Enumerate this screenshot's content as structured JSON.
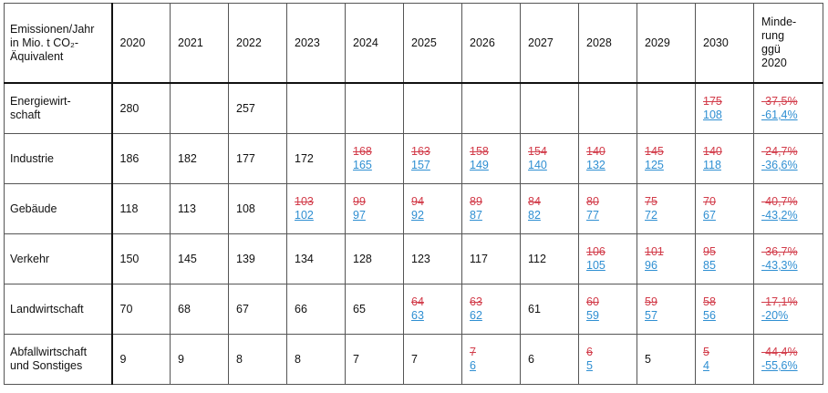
{
  "table": {
    "header": [
      "Emissionen/Jahr\nin Mio. t CO₂-\nÄquivalent",
      "2020",
      "2021",
      "2022",
      "2023",
      "2024",
      "2025",
      "2026",
      "2027",
      "2028",
      "2029",
      "2030",
      "Minde-\nrung\nggü\n2020"
    ],
    "rows": [
      {
        "label": "Energiewirt-\nschaft",
        "cells": [
          280,
          null,
          257,
          null,
          null,
          null,
          null,
          null,
          null,
          null,
          {
            "old": 175,
            "new": 108
          },
          {
            "old": "-37,5%",
            "new": "-61,4%"
          }
        ]
      },
      {
        "label": "Industrie",
        "cells": [
          186,
          182,
          177,
          172,
          {
            "old": 168,
            "new": 165
          },
          {
            "old": 163,
            "new": 157
          },
          {
            "old": 158,
            "new": 149
          },
          {
            "old": 154,
            "new": 140
          },
          {
            "old": 140,
            "new": 132
          },
          {
            "old": 145,
            "new": 125
          },
          {
            "old": 140,
            "new": 118
          },
          {
            "old": "-24,7%",
            "new": "-36,6%"
          }
        ]
      },
      {
        "label": "Gebäude",
        "cells": [
          118,
          113,
          108,
          {
            "old": 103,
            "new": 102
          },
          {
            "old": 99,
            "new": 97
          },
          {
            "old": 94,
            "new": 92
          },
          {
            "old": 89,
            "new": 87
          },
          {
            "old": 84,
            "new": 82
          },
          {
            "old": 80,
            "new": 77
          },
          {
            "old": 75,
            "new": 72
          },
          {
            "old": 70,
            "new": 67
          },
          {
            "old": "-40,7%",
            "new": "-43,2%"
          }
        ]
      },
      {
        "label": "Verkehr",
        "cells": [
          150,
          145,
          139,
          134,
          128,
          123,
          117,
          112,
          {
            "old": 106,
            "new": 105
          },
          {
            "old": 101,
            "new": 96
          },
          {
            "old": 95,
            "new": 85
          },
          {
            "old": "-36,7%",
            "new": "-43,3%"
          }
        ]
      },
      {
        "label": "Landwirtschaft",
        "cells": [
          70,
          68,
          67,
          66,
          65,
          {
            "old": 64,
            "new": 63
          },
          {
            "old": 63,
            "new": 62
          },
          61,
          {
            "old": 60,
            "new": 59
          },
          {
            "old": 59,
            "new": 57
          },
          {
            "old": 58,
            "new": 56
          },
          {
            "old": "-17,1%",
            "new": "-20%"
          }
        ]
      },
      {
        "label": "Abfallwirtschaft\nund Sonstiges",
        "cells": [
          9,
          9,
          8,
          8,
          7,
          7,
          {
            "old": 7,
            "new": 6
          },
          6,
          {
            "old": 6,
            "new": 5
          },
          5,
          {
            "old": 5,
            "new": 4
          },
          {
            "old": "-44,4%",
            "new": "-55,6%"
          }
        ]
      }
    ]
  }
}
